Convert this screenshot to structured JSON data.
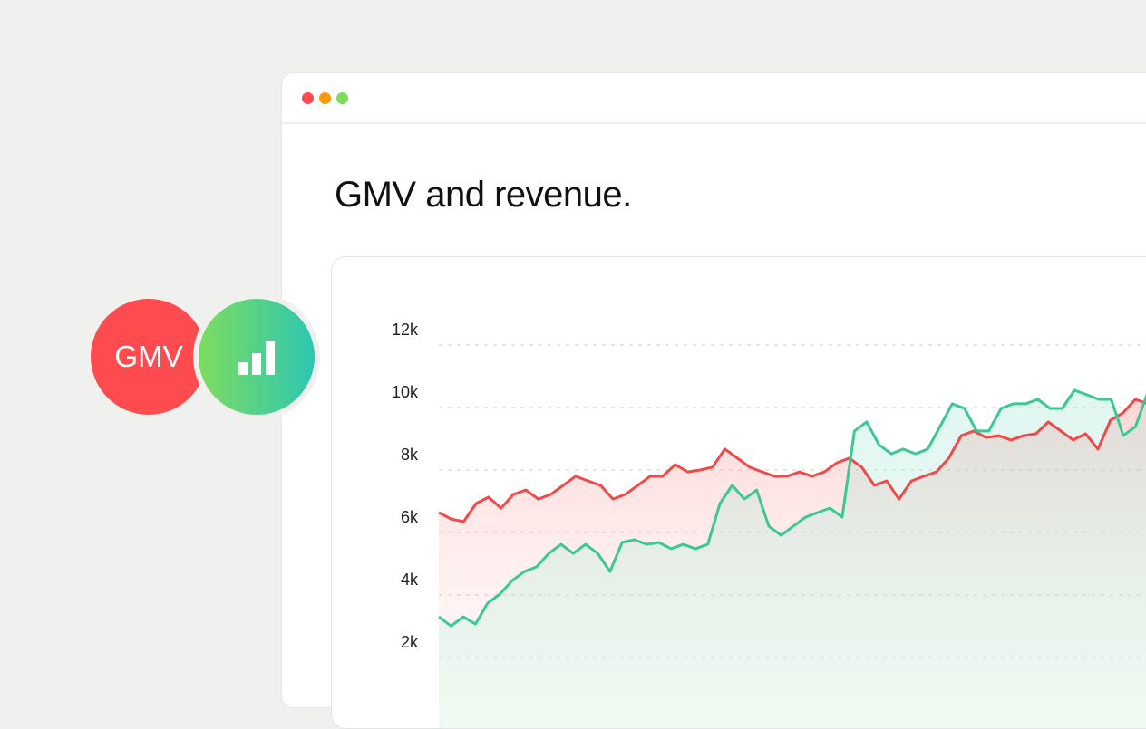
{
  "window": {
    "controls": [
      {
        "name": "close",
        "color": "#fd4a4d"
      },
      {
        "name": "minimize",
        "color": "#fe9a0a"
      },
      {
        "name": "maximize",
        "color": "#7ddc5c"
      }
    ]
  },
  "page": {
    "title": "GMV and revenue."
  },
  "badges": {
    "gmv_label": "GMV",
    "gmv_color": "#fe4b4f",
    "revenue_icon": "bar-chart-icon",
    "revenue_gradient": [
      "#7ddc60",
      "#2ec6b2"
    ]
  },
  "chart_data": {
    "type": "line",
    "title": "",
    "xlabel": "",
    "ylabel": "",
    "ylim": [
      1.3,
      12.5
    ],
    "yticks": [
      2,
      4,
      6,
      8,
      10,
      12
    ],
    "ytick_labels": [
      "2k",
      "4k",
      "6k",
      "8k",
      "10k",
      "12k"
    ],
    "grid": true,
    "series": [
      {
        "color": "#f04a4a",
        "fill": "area-gradient",
        "values": [
          6.64,
          6.43,
          6.35,
          6.93,
          7.13,
          6.78,
          7.22,
          7.36,
          7.07,
          7.22,
          7.51,
          7.8,
          7.65,
          7.51,
          7.07,
          7.22,
          7.51,
          7.8,
          7.8,
          8.17,
          7.94,
          8.0,
          8.09,
          8.67,
          8.38,
          8.09,
          7.94,
          7.8,
          7.8,
          7.94,
          7.8,
          7.94,
          8.23,
          8.38,
          8.09,
          7.51,
          7.65,
          7.07,
          7.65,
          7.8,
          7.94,
          8.38,
          9.1,
          9.25,
          9.04,
          9.1,
          8.96,
          9.1,
          9.16,
          9.54,
          9.25,
          8.96,
          9.16,
          8.67,
          9.59,
          9.83,
          10.26,
          10.12
        ]
      },
      {
        "color": "#3cc893",
        "fill": "area-gradient",
        "values": [
          3.3,
          3.01,
          3.3,
          3.07,
          3.74,
          4.03,
          4.46,
          4.75,
          4.9,
          5.33,
          5.62,
          5.33,
          5.62,
          5.33,
          4.75,
          5.68,
          5.77,
          5.62,
          5.68,
          5.48,
          5.62,
          5.48,
          5.62,
          6.93,
          7.51,
          7.07,
          7.36,
          6.2,
          5.91,
          6.2,
          6.49,
          6.64,
          6.78,
          6.49,
          9.25,
          9.54,
          8.81,
          8.52,
          8.67,
          8.52,
          8.67,
          9.39,
          10.12,
          9.97,
          9.25,
          9.25,
          9.97,
          10.12,
          10.12,
          10.26,
          9.97,
          9.97,
          10.55,
          10.41,
          10.26,
          10.26,
          9.1,
          9.39,
          10.49
        ]
      }
    ]
  }
}
